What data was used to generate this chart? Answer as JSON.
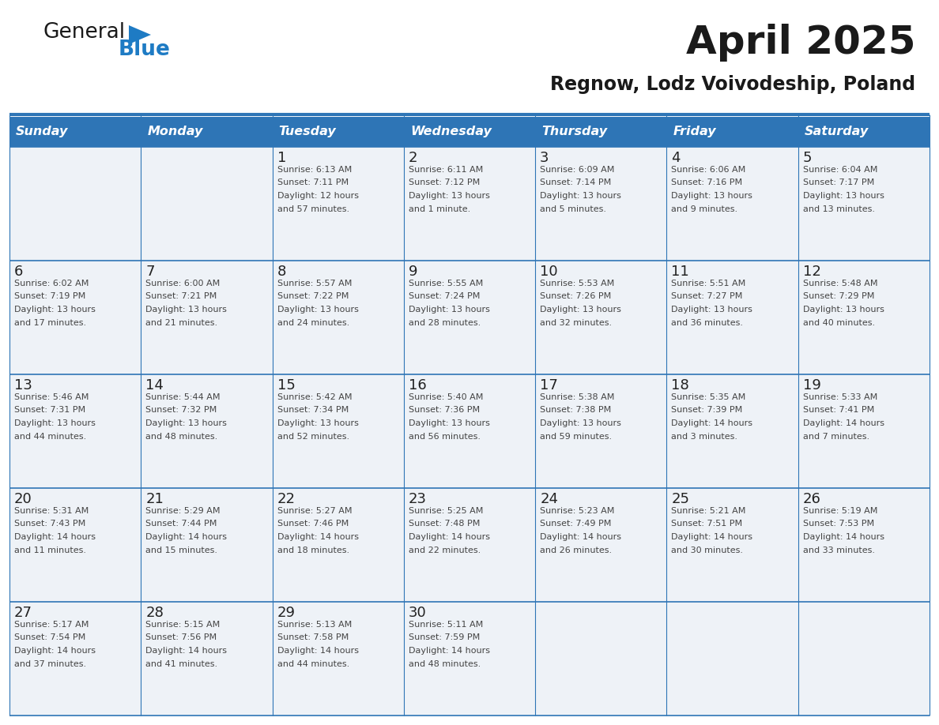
{
  "title": "April 2025",
  "subtitle": "Regnow, Lodz Voivodeship, Poland",
  "header_bg": "#2E75B6",
  "header_text_color": "#FFFFFF",
  "cell_bg_light": "#EEF2F7",
  "day_number_color": "#222222",
  "text_color": "#444444",
  "line_color": "#2E75B6",
  "logo_text_color": "#222222",
  "logo_blue_color": "#1E7BC4",
  "days_of_week": [
    "Sunday",
    "Monday",
    "Tuesday",
    "Wednesday",
    "Thursday",
    "Friday",
    "Saturday"
  ],
  "calendar_data": [
    [
      {
        "day": "",
        "info": ""
      },
      {
        "day": "",
        "info": ""
      },
      {
        "day": "1",
        "info": "Sunrise: 6:13 AM\nSunset: 7:11 PM\nDaylight: 12 hours\nand 57 minutes."
      },
      {
        "day": "2",
        "info": "Sunrise: 6:11 AM\nSunset: 7:12 PM\nDaylight: 13 hours\nand 1 minute."
      },
      {
        "day": "3",
        "info": "Sunrise: 6:09 AM\nSunset: 7:14 PM\nDaylight: 13 hours\nand 5 minutes."
      },
      {
        "day": "4",
        "info": "Sunrise: 6:06 AM\nSunset: 7:16 PM\nDaylight: 13 hours\nand 9 minutes."
      },
      {
        "day": "5",
        "info": "Sunrise: 6:04 AM\nSunset: 7:17 PM\nDaylight: 13 hours\nand 13 minutes."
      }
    ],
    [
      {
        "day": "6",
        "info": "Sunrise: 6:02 AM\nSunset: 7:19 PM\nDaylight: 13 hours\nand 17 minutes."
      },
      {
        "day": "7",
        "info": "Sunrise: 6:00 AM\nSunset: 7:21 PM\nDaylight: 13 hours\nand 21 minutes."
      },
      {
        "day": "8",
        "info": "Sunrise: 5:57 AM\nSunset: 7:22 PM\nDaylight: 13 hours\nand 24 minutes."
      },
      {
        "day": "9",
        "info": "Sunrise: 5:55 AM\nSunset: 7:24 PM\nDaylight: 13 hours\nand 28 minutes."
      },
      {
        "day": "10",
        "info": "Sunrise: 5:53 AM\nSunset: 7:26 PM\nDaylight: 13 hours\nand 32 minutes."
      },
      {
        "day": "11",
        "info": "Sunrise: 5:51 AM\nSunset: 7:27 PM\nDaylight: 13 hours\nand 36 minutes."
      },
      {
        "day": "12",
        "info": "Sunrise: 5:48 AM\nSunset: 7:29 PM\nDaylight: 13 hours\nand 40 minutes."
      }
    ],
    [
      {
        "day": "13",
        "info": "Sunrise: 5:46 AM\nSunset: 7:31 PM\nDaylight: 13 hours\nand 44 minutes."
      },
      {
        "day": "14",
        "info": "Sunrise: 5:44 AM\nSunset: 7:32 PM\nDaylight: 13 hours\nand 48 minutes."
      },
      {
        "day": "15",
        "info": "Sunrise: 5:42 AM\nSunset: 7:34 PM\nDaylight: 13 hours\nand 52 minutes."
      },
      {
        "day": "16",
        "info": "Sunrise: 5:40 AM\nSunset: 7:36 PM\nDaylight: 13 hours\nand 56 minutes."
      },
      {
        "day": "17",
        "info": "Sunrise: 5:38 AM\nSunset: 7:38 PM\nDaylight: 13 hours\nand 59 minutes."
      },
      {
        "day": "18",
        "info": "Sunrise: 5:35 AM\nSunset: 7:39 PM\nDaylight: 14 hours\nand 3 minutes."
      },
      {
        "day": "19",
        "info": "Sunrise: 5:33 AM\nSunset: 7:41 PM\nDaylight: 14 hours\nand 7 minutes."
      }
    ],
    [
      {
        "day": "20",
        "info": "Sunrise: 5:31 AM\nSunset: 7:43 PM\nDaylight: 14 hours\nand 11 minutes."
      },
      {
        "day": "21",
        "info": "Sunrise: 5:29 AM\nSunset: 7:44 PM\nDaylight: 14 hours\nand 15 minutes."
      },
      {
        "day": "22",
        "info": "Sunrise: 5:27 AM\nSunset: 7:46 PM\nDaylight: 14 hours\nand 18 minutes."
      },
      {
        "day": "23",
        "info": "Sunrise: 5:25 AM\nSunset: 7:48 PM\nDaylight: 14 hours\nand 22 minutes."
      },
      {
        "day": "24",
        "info": "Sunrise: 5:23 AM\nSunset: 7:49 PM\nDaylight: 14 hours\nand 26 minutes."
      },
      {
        "day": "25",
        "info": "Sunrise: 5:21 AM\nSunset: 7:51 PM\nDaylight: 14 hours\nand 30 minutes."
      },
      {
        "day": "26",
        "info": "Sunrise: 5:19 AM\nSunset: 7:53 PM\nDaylight: 14 hours\nand 33 minutes."
      }
    ],
    [
      {
        "day": "27",
        "info": "Sunrise: 5:17 AM\nSunset: 7:54 PM\nDaylight: 14 hours\nand 37 minutes."
      },
      {
        "day": "28",
        "info": "Sunrise: 5:15 AM\nSunset: 7:56 PM\nDaylight: 14 hours\nand 41 minutes."
      },
      {
        "day": "29",
        "info": "Sunrise: 5:13 AM\nSunset: 7:58 PM\nDaylight: 14 hours\nand 44 minutes."
      },
      {
        "day": "30",
        "info": "Sunrise: 5:11 AM\nSunset: 7:59 PM\nDaylight: 14 hours\nand 48 minutes."
      },
      {
        "day": "",
        "info": ""
      },
      {
        "day": "",
        "info": ""
      },
      {
        "day": "",
        "info": ""
      }
    ]
  ]
}
